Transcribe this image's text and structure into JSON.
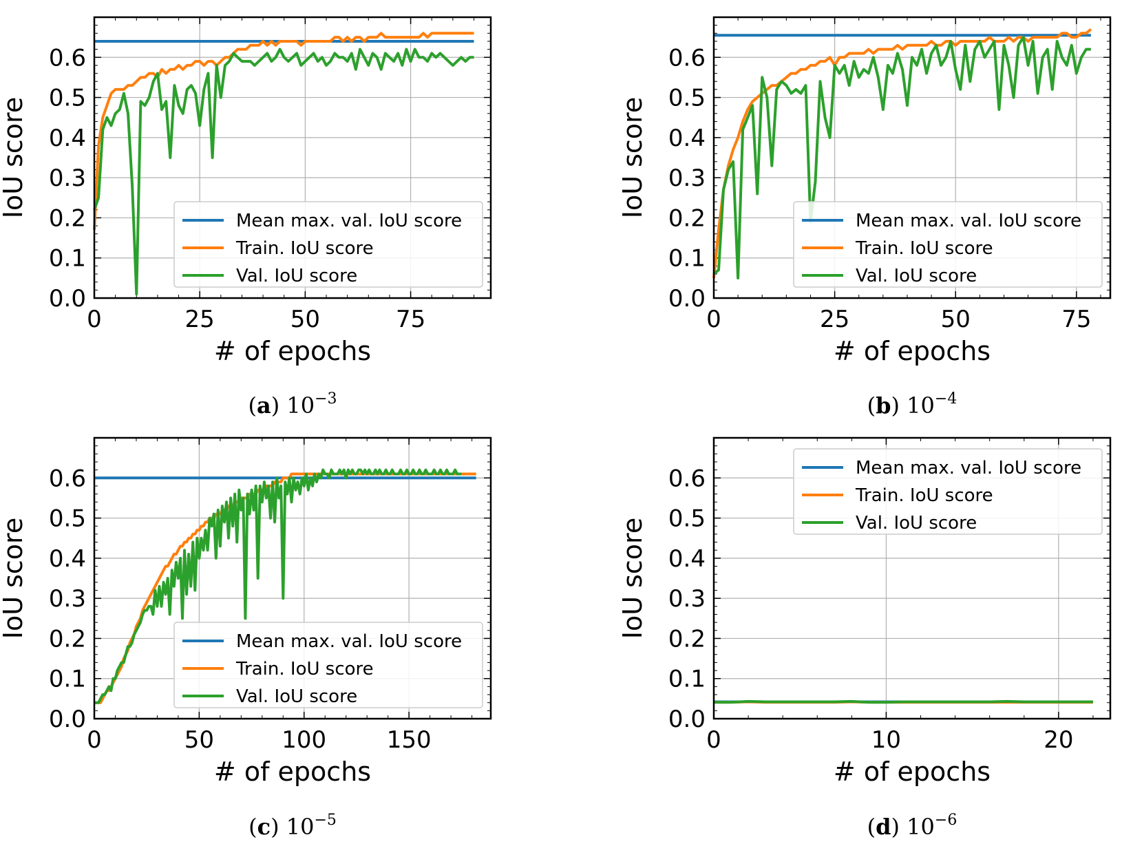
{
  "colors": {
    "mean": "#1f77b4",
    "train": "#ff7f0e",
    "val": "#2ca02c"
  },
  "chart_data": [
    {
      "type": "line",
      "caption_letter": "a",
      "caption_base": "10",
      "caption_exp": "−3",
      "xlabel": "# of epochs",
      "ylabel": "IoU score",
      "xlim": [
        0,
        94
      ],
      "ylim": [
        0,
        0.7
      ],
      "xticks": [
        0,
        25,
        50,
        75
      ],
      "yticks": [
        0.0,
        0.1,
        0.2,
        0.3,
        0.4,
        0.5,
        0.6
      ],
      "legend_position": "lower-right",
      "series": [
        {
          "name": "Mean max. val. IoU score",
          "key": "mean",
          "values": [
            0.64,
            0.64
          ]
        },
        {
          "name": "Train. IoU score",
          "key": "train",
          "values": [
            0.17,
            0.38,
            0.45,
            0.48,
            0.51,
            0.52,
            0.52,
            0.52,
            0.53,
            0.53,
            0.54,
            0.55,
            0.55,
            0.56,
            0.56,
            0.55,
            0.57,
            0.56,
            0.57,
            0.57,
            0.58,
            0.57,
            0.58,
            0.58,
            0.59,
            0.59,
            0.58,
            0.59,
            0.59,
            0.58,
            0.59,
            0.6,
            0.6,
            0.61,
            0.62,
            0.62,
            0.62,
            0.63,
            0.63,
            0.63,
            0.64,
            0.63,
            0.64,
            0.63,
            0.64,
            0.64,
            0.64,
            0.64,
            0.64,
            0.63,
            0.64,
            0.64,
            0.64,
            0.64,
            0.64,
            0.64,
            0.64,
            0.65,
            0.65,
            0.64,
            0.65,
            0.64,
            0.65,
            0.65,
            0.64,
            0.65,
            0.65,
            0.65,
            0.66,
            0.65,
            0.65,
            0.65,
            0.65,
            0.65,
            0.65,
            0.65,
            0.65,
            0.65,
            0.66,
            0.65,
            0.66,
            0.66,
            0.66,
            0.66,
            0.66,
            0.66,
            0.66,
            0.66,
            0.66,
            0.66,
            0.66
          ]
        },
        {
          "name": "Val. IoU score",
          "key": "val",
          "values": [
            0.22,
            0.25,
            0.42,
            0.45,
            0.43,
            0.46,
            0.47,
            0.51,
            0.46,
            0.28,
            0.01,
            0.49,
            0.48,
            0.5,
            0.54,
            0.56,
            0.47,
            0.49,
            0.35,
            0.53,
            0.48,
            0.46,
            0.52,
            0.53,
            0.51,
            0.43,
            0.52,
            0.56,
            0.35,
            0.58,
            0.5,
            0.58,
            0.59,
            0.61,
            0.6,
            0.59,
            0.59,
            0.59,
            0.58,
            0.59,
            0.6,
            0.61,
            0.59,
            0.6,
            0.62,
            0.6,
            0.59,
            0.6,
            0.61,
            0.58,
            0.59,
            0.6,
            0.61,
            0.59,
            0.6,
            0.58,
            0.59,
            0.61,
            0.6,
            0.6,
            0.59,
            0.61,
            0.57,
            0.62,
            0.6,
            0.58,
            0.61,
            0.6,
            0.57,
            0.61,
            0.6,
            0.59,
            0.61,
            0.58,
            0.62,
            0.59,
            0.62,
            0.6,
            0.6,
            0.59,
            0.61,
            0.6,
            0.61,
            0.6,
            0.59,
            0.58,
            0.59,
            0.6,
            0.59,
            0.6,
            0.6
          ]
        }
      ]
    },
    {
      "type": "line",
      "caption_letter": "b",
      "caption_base": "10",
      "caption_exp": "−4",
      "xlabel": "# of epochs",
      "ylabel": "IoU score",
      "xlim": [
        0,
        82
      ],
      "ylim": [
        0,
        0.7
      ],
      "xticks": [
        0,
        25,
        50,
        75
      ],
      "yticks": [
        0.0,
        0.1,
        0.2,
        0.3,
        0.4,
        0.5,
        0.6
      ],
      "legend_position": "lower-right",
      "series": [
        {
          "name": "Mean max. val. IoU score",
          "key": "mean",
          "values": [
            0.655,
            0.655
          ]
        },
        {
          "name": "Train. IoU score",
          "key": "train",
          "values": [
            0.05,
            0.17,
            0.27,
            0.33,
            0.37,
            0.4,
            0.44,
            0.47,
            0.49,
            0.5,
            0.51,
            0.52,
            0.53,
            0.53,
            0.54,
            0.55,
            0.56,
            0.56,
            0.57,
            0.57,
            0.58,
            0.58,
            0.59,
            0.59,
            0.6,
            0.58,
            0.6,
            0.6,
            0.61,
            0.61,
            0.61,
            0.61,
            0.62,
            0.61,
            0.62,
            0.62,
            0.62,
            0.62,
            0.63,
            0.62,
            0.63,
            0.63,
            0.63,
            0.63,
            0.63,
            0.64,
            0.63,
            0.63,
            0.64,
            0.64,
            0.63,
            0.64,
            0.64,
            0.64,
            0.64,
            0.64,
            0.64,
            0.65,
            0.64,
            0.64,
            0.64,
            0.65,
            0.64,
            0.65,
            0.65,
            0.64,
            0.65,
            0.65,
            0.65,
            0.65,
            0.65,
            0.65,
            0.66,
            0.66,
            0.65,
            0.65,
            0.66,
            0.66,
            0.67
          ]
        },
        {
          "name": "Val. IoU score",
          "key": "val",
          "values": [
            0.06,
            0.07,
            0.27,
            0.32,
            0.34,
            0.05,
            0.42,
            0.45,
            0.48,
            0.26,
            0.55,
            0.5,
            0.33,
            0.52,
            0.54,
            0.53,
            0.51,
            0.52,
            0.51,
            0.53,
            0.19,
            0.29,
            0.54,
            0.45,
            0.4,
            0.58,
            0.56,
            0.58,
            0.53,
            0.59,
            0.55,
            0.57,
            0.56,
            0.6,
            0.55,
            0.47,
            0.58,
            0.56,
            0.61,
            0.57,
            0.48,
            0.6,
            0.58,
            0.62,
            0.56,
            0.61,
            0.63,
            0.58,
            0.6,
            0.64,
            0.57,
            0.52,
            0.63,
            0.54,
            0.62,
            0.64,
            0.6,
            0.62,
            0.64,
            0.47,
            0.63,
            0.58,
            0.5,
            0.63,
            0.65,
            0.58,
            0.64,
            0.51,
            0.6,
            0.62,
            0.52,
            0.64,
            0.6,
            0.58,
            0.63,
            0.56,
            0.6,
            0.62,
            0.62
          ]
        }
      ]
    },
    {
      "type": "line",
      "caption_letter": "c",
      "caption_base": "10",
      "caption_exp": "−5",
      "xlabel": "# of epochs",
      "ylabel": "IoU score",
      "xlim": [
        0,
        189
      ],
      "ylim": [
        0,
        0.7
      ],
      "xticks": [
        0,
        50,
        100,
        150
      ],
      "yticks": [
        0.0,
        0.1,
        0.2,
        0.3,
        0.4,
        0.5,
        0.6
      ],
      "legend_position": "lower-right",
      "series": [
        {
          "name": "Mean max. val. IoU score",
          "key": "mean",
          "values": [
            0.6,
            0.6
          ]
        },
        {
          "name": "Train. IoU score",
          "key": "train",
          "values": [
            0.04,
            0.04,
            0.04,
            0.04,
            0.05,
            0.06,
            0.07,
            0.07,
            0.08,
            0.09,
            0.1,
            0.11,
            0.12,
            0.13,
            0.15,
            0.16,
            0.17,
            0.19,
            0.2,
            0.21,
            0.23,
            0.24,
            0.25,
            0.27,
            0.28,
            0.29,
            0.3,
            0.31,
            0.32,
            0.33,
            0.34,
            0.35,
            0.36,
            0.37,
            0.38,
            0.38,
            0.39,
            0.4,
            0.41,
            0.41,
            0.42,
            0.43,
            0.43,
            0.44,
            0.44,
            0.45,
            0.45,
            0.46,
            0.46,
            0.47,
            0.47,
            0.48,
            0.48,
            0.49,
            0.49,
            0.5,
            0.5,
            0.5,
            0.51,
            0.51,
            0.51,
            0.52,
            0.52,
            0.52,
            0.53,
            0.53,
            0.53,
            0.54,
            0.54,
            0.54,
            0.55,
            0.55,
            0.55,
            0.55,
            0.56,
            0.56,
            0.56,
            0.56,
            0.57,
            0.57,
            0.57,
            0.57,
            0.58,
            0.58,
            0.58,
            0.58,
            0.59,
            0.59,
            0.59,
            0.59,
            0.6,
            0.6,
            0.6,
            0.6,
            0.61,
            0.61,
            0.61,
            0.61,
            0.61,
            0.61,
            0.61,
            0.61,
            0.61,
            0.61,
            0.61,
            0.61,
            0.61,
            0.61,
            0.61,
            0.61,
            0.61,
            0.61,
            0.61,
            0.61,
            0.61,
            0.61,
            0.61,
            0.61,
            0.61,
            0.61,
            0.61,
            0.61,
            0.61,
            0.61,
            0.61,
            0.61,
            0.61,
            0.61,
            0.61,
            0.61,
            0.61,
            0.61,
            0.61,
            0.61,
            0.61,
            0.61,
            0.61,
            0.61,
            0.61,
            0.61,
            0.61,
            0.61,
            0.61,
            0.61,
            0.61,
            0.61,
            0.61,
            0.61,
            0.61,
            0.61,
            0.61,
            0.61,
            0.61,
            0.61,
            0.61,
            0.61,
            0.61,
            0.61,
            0.61,
            0.61,
            0.61,
            0.61,
            0.61,
            0.61,
            0.61,
            0.61,
            0.61,
            0.61,
            0.61,
            0.61,
            0.61,
            0.61,
            0.61,
            0.61,
            0.61,
            0.61,
            0.61,
            0.61,
            0.61,
            0.61,
            0.61,
            0.61,
            0.61
          ]
        },
        {
          "name": "Val. IoU score",
          "key": "val",
          "values": [
            0.04,
            0.04,
            0.04,
            0.05,
            0.06,
            0.06,
            0.07,
            0.08,
            0.07,
            0.1,
            0.1,
            0.12,
            0.13,
            0.14,
            0.14,
            0.16,
            0.18,
            0.18,
            0.19,
            0.21,
            0.22,
            0.23,
            0.24,
            0.26,
            0.27,
            0.27,
            0.28,
            0.28,
            0.26,
            0.32,
            0.28,
            0.33,
            0.28,
            0.34,
            0.31,
            0.35,
            0.26,
            0.37,
            0.33,
            0.39,
            0.35,
            0.4,
            0.25,
            0.42,
            0.31,
            0.41,
            0.33,
            0.44,
            0.32,
            0.45,
            0.4,
            0.45,
            0.42,
            0.47,
            0.42,
            0.5,
            0.48,
            0.51,
            0.4,
            0.52,
            0.43,
            0.53,
            0.49,
            0.54,
            0.45,
            0.55,
            0.48,
            0.56,
            0.44,
            0.57,
            0.52,
            0.55,
            0.25,
            0.56,
            0.51,
            0.57,
            0.52,
            0.58,
            0.35,
            0.58,
            0.54,
            0.59,
            0.55,
            0.58,
            0.5,
            0.59,
            0.49,
            0.6,
            0.55,
            0.58,
            0.3,
            0.59,
            0.56,
            0.6,
            0.54,
            0.6,
            0.57,
            0.59,
            0.56,
            0.6,
            0.58,
            0.61,
            0.57,
            0.6,
            0.58,
            0.61,
            0.59,
            0.61,
            0.6,
            0.62,
            0.61,
            0.61,
            0.6,
            0.62,
            0.61,
            0.61,
            0.61,
            0.62,
            0.61,
            0.62,
            0.6,
            0.62,
            0.61,
            0.62,
            0.61,
            0.61,
            0.62,
            0.62,
            0.61,
            0.62,
            0.61,
            0.62,
            0.61,
            0.61,
            0.62,
            0.61,
            0.62,
            0.61,
            0.61,
            0.62,
            0.61,
            0.61,
            0.62,
            0.61,
            0.61,
            0.61,
            0.62,
            0.61,
            0.61,
            0.62,
            0.61,
            0.61,
            0.62,
            0.61,
            0.61,
            0.62,
            0.61,
            0.61,
            0.62,
            0.61,
            0.61,
            0.61,
            0.62,
            0.61,
            0.61,
            0.62,
            0.61,
            0.61,
            0.62,
            0.61,
            0.61,
            0.61,
            0.62,
            0.61,
            0.61,
            0.61
          ]
        }
      ]
    },
    {
      "type": "line",
      "caption_letter": "d",
      "caption_base": "10",
      "caption_exp": "−6",
      "xlabel": "# of epochs",
      "ylabel": "IoU score",
      "xlim": [
        0,
        23
      ],
      "ylim": [
        0,
        0.7
      ],
      "xticks": [
        0,
        10,
        20
      ],
      "yticks": [
        0.0,
        0.1,
        0.2,
        0.3,
        0.4,
        0.5,
        0.6
      ],
      "legend_position": "upper-right",
      "series": [
        {
          "name": "Mean max. val. IoU score",
          "key": "mean",
          "values": [
            0.042,
            0.042
          ]
        },
        {
          "name": "Train. IoU score",
          "key": "train",
          "values": [
            0.041,
            0.041,
            0.042,
            0.041,
            0.041,
            0.041,
            0.041,
            0.041,
            0.042,
            0.041,
            0.041,
            0.041,
            0.041,
            0.041,
            0.041,
            0.041,
            0.041,
            0.041,
            0.041,
            0.041,
            0.041,
            0.041,
            0.041
          ]
        },
        {
          "name": "Val. IoU score",
          "key": "val",
          "values": [
            0.041,
            0.041,
            0.043,
            0.042,
            0.042,
            0.042,
            0.042,
            0.042,
            0.043,
            0.041,
            0.041,
            0.042,
            0.042,
            0.042,
            0.042,
            0.042,
            0.042,
            0.043,
            0.042,
            0.042,
            0.042,
            0.042,
            0.042
          ]
        }
      ]
    }
  ]
}
